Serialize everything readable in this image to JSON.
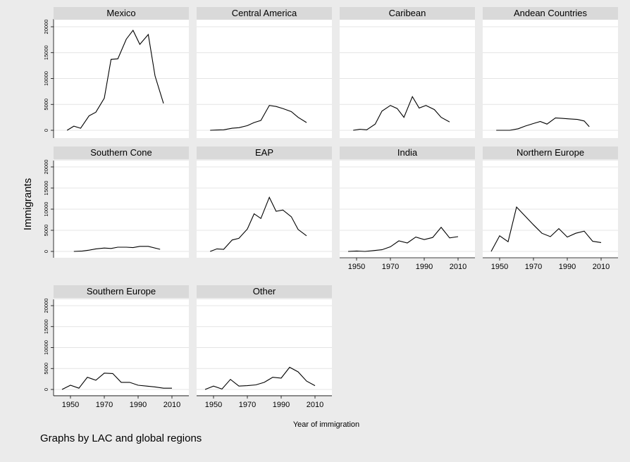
{
  "chart_data": {
    "type": "line",
    "ylabel": "Immigrants",
    "xlabel": "Year of immigration",
    "note": "Graphs by LAC and global regions",
    "xlim": [
      1940,
      2020
    ],
    "xticks": [
      1950,
      1970,
      1990,
      2010
    ],
    "ylim": [
      -1500,
      21500
    ],
    "yticks": [
      0,
      5000,
      10000,
      15000,
      20000
    ],
    "grid": true,
    "color": "#000000",
    "panels": [
      {
        "title": "Mexico",
        "x": [
          1948,
          1952,
          1956,
          1961,
          1965,
          1970,
          1974,
          1978,
          1983,
          1987,
          1991,
          1996,
          2000,
          2005
        ],
        "values": [
          0,
          800,
          400,
          2800,
          3500,
          6200,
          13700,
          13800,
          17600,
          19300,
          16600,
          18500,
          10500,
          5200
        ]
      },
      {
        "title": "Central America",
        "x": [
          1948,
          1952,
          1956,
          1961,
          1965,
          1970,
          1974,
          1978,
          1983,
          1987,
          1991,
          1996,
          2000,
          2005
        ],
        "values": [
          0,
          50,
          100,
          400,
          500,
          900,
          1500,
          1900,
          4800,
          4600,
          4200,
          3600,
          2500,
          1500
        ]
      },
      {
        "title": "Caribean",
        "x": [
          1948,
          1952,
          1956,
          1961,
          1965,
          1970,
          1974,
          1978,
          1983,
          1987,
          1991,
          1996,
          2000,
          2005
        ],
        "values": [
          0,
          200,
          100,
          1200,
          3700,
          4800,
          4200,
          2500,
          6500,
          4300,
          4800,
          4000,
          2500,
          1600
        ]
      },
      {
        "title": "Andean Countries",
        "x": [
          1948,
          1952,
          1956,
          1961,
          1965,
          1970,
          1974,
          1978,
          1983,
          1987,
          1991,
          1996,
          2000,
          2003
        ],
        "values": [
          0,
          0,
          0,
          300,
          800,
          1300,
          1700,
          1200,
          2400,
          2300,
          2200,
          2100,
          1800,
          700
        ]
      },
      {
        "title": "Southern Cone",
        "x": [
          1952,
          1957,
          1961,
          1965,
          1970,
          1974,
          1978,
          1983,
          1987,
          1991,
          1996,
          2003
        ],
        "values": [
          0,
          100,
          300,
          600,
          800,
          700,
          1000,
          1000,
          900,
          1200,
          1200,
          500
        ]
      },
      {
        "title": "EAP",
        "x": [
          1948,
          1952,
          1956,
          1961,
          1965,
          1970,
          1974,
          1978,
          1983,
          1987,
          1991,
          1996,
          2000,
          2005
        ],
        "values": [
          0,
          600,
          500,
          2700,
          3100,
          5300,
          8900,
          7800,
          12800,
          9500,
          9800,
          8200,
          5200,
          3700
        ]
      },
      {
        "title": "India",
        "x": [
          1945,
          1950,
          1955,
          1960,
          1965,
          1970,
          1975,
          1980,
          1985,
          1990,
          1995,
          2000,
          2005,
          2010
        ],
        "values": [
          0,
          100,
          0,
          200,
          400,
          1100,
          2500,
          2000,
          3400,
          2800,
          3300,
          5700,
          3200,
          3500
        ]
      },
      {
        "title": "Northern Europe",
        "x": [
          1945,
          1950,
          1955,
          1960,
          1965,
          1970,
          1975,
          1980,
          1985,
          1990,
          1995,
          2000,
          2005,
          2010
        ],
        "values": [
          0,
          3700,
          2300,
          10500,
          8400,
          6300,
          4300,
          3500,
          5400,
          3400,
          4300,
          4800,
          2400,
          2100
        ]
      },
      {
        "title": "Southern Europe",
        "x": [
          1945,
          1950,
          1955,
          1960,
          1965,
          1970,
          1975,
          1980,
          1985,
          1990,
          1995,
          2000,
          2005,
          2010
        ],
        "values": [
          0,
          1000,
          300,
          2900,
          2200,
          3900,
          3800,
          1700,
          1700,
          1000,
          800,
          600,
          300,
          300
        ]
      },
      {
        "title": "Other",
        "x": [
          1945,
          1950,
          1955,
          1960,
          1965,
          1970,
          1975,
          1980,
          1985,
          1990,
          1995,
          2000,
          2005,
          2010
        ],
        "values": [
          0,
          800,
          100,
          2400,
          800,
          900,
          1100,
          1700,
          2900,
          2700,
          5300,
          4200,
          2000,
          900
        ]
      }
    ]
  }
}
